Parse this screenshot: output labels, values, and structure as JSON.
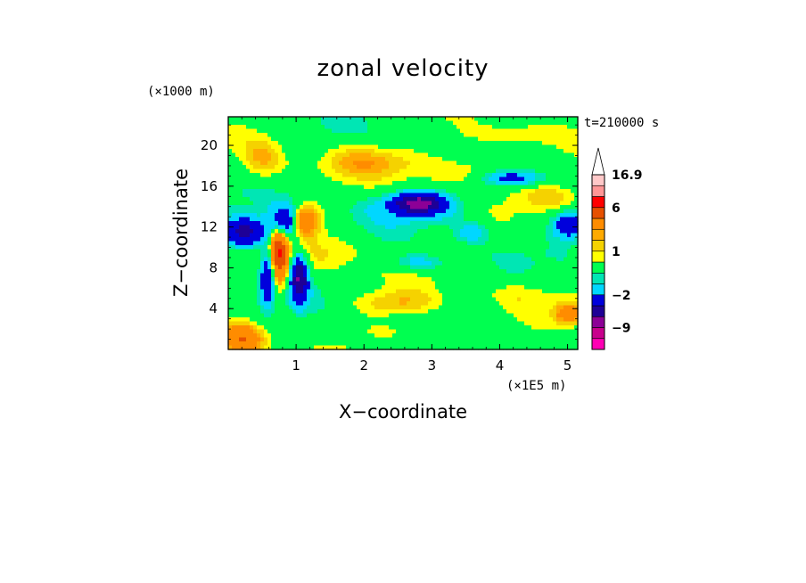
{
  "chart_data": {
    "type": "heatmap",
    "title": "zonal velocity",
    "xlabel": "X−coordinate",
    "ylabel": "Z−coordinate",
    "x_unit": "(×1E5 m)",
    "y_unit": "(×1000 m)",
    "time_label": "t=210000 s",
    "xlim": [
      0.0,
      5.15
    ],
    "ylim": [
      0.0,
      22.8
    ],
    "x_ticks": [
      1,
      2,
      3,
      4,
      5
    ],
    "y_ticks": [
      4,
      8,
      12,
      16,
      20
    ],
    "x_tick_labels": [
      "1",
      "2",
      "3",
      "4",
      "5"
    ],
    "y_tick_labels": [
      "4",
      "8",
      "12",
      "16",
      "20"
    ],
    "colorbar": {
      "levels": [
        -16,
        -12,
        -9,
        -6,
        -4,
        -2,
        -1,
        -0.5,
        0.5,
        1,
        1.5,
        2,
        4,
        6,
        8,
        12,
        16.9
      ],
      "colors": [
        "#ff00b4",
        "#c8008c",
        "#8c0096",
        "#1e0096",
        "#0000dc",
        "#00d7ff",
        "#00e6b4",
        "#00ff50",
        "#ffff00",
        "#f5d200",
        "#ffaa00",
        "#ff8c00",
        "#e65000",
        "#ff0000",
        "#ff9696",
        "#ffc8c8"
      ],
      "labels": [
        "16.9",
        "6",
        "1",
        "−2",
        "−9"
      ],
      "label_values": [
        16.9,
        6,
        1,
        -2,
        -9
      ],
      "extend": "max"
    },
    "field_features": [
      {
        "x": 0.85,
        "z": 12.5,
        "sx": 0.22,
        "sz": 1.6,
        "value": -7
      },
      {
        "x": 0.25,
        "z": 11.5,
        "sx": 0.3,
        "sz": 1.4,
        "value": -5
      },
      {
        "x": 1.05,
        "z": 12.6,
        "sx": 0.25,
        "sz": 1.5,
        "value": 5
      },
      {
        "x": 0.75,
        "z": 9.5,
        "sx": 0.12,
        "sz": 3.0,
        "value": 6
      },
      {
        "x": 1.05,
        "z": 7.0,
        "sx": 0.12,
        "sz": 2.2,
        "value": -6
      },
      {
        "x": 0.58,
        "z": 7.0,
        "sx": 0.1,
        "sz": 2.5,
        "value": -4
      },
      {
        "x": 0.2,
        "z": 1.0,
        "sx": 0.3,
        "sz": 1.5,
        "value": 4
      },
      {
        "x": 0.5,
        "z": 18.5,
        "sx": 0.3,
        "sz": 2.0,
        "value": 1.5
      },
      {
        "x": 2.8,
        "z": 14.3,
        "sx": 0.35,
        "sz": 0.9,
        "value": -6
      },
      {
        "x": 2.8,
        "z": 14.0,
        "sx": 0.8,
        "sz": 1.6,
        "value": -1.5
      },
      {
        "x": 4.2,
        "z": 16.8,
        "sx": 0.4,
        "sz": 0.8,
        "value": -3
      },
      {
        "x": 5.05,
        "z": 12.2,
        "sx": 0.25,
        "sz": 1.2,
        "value": -4
      },
      {
        "x": 3.6,
        "z": 11.5,
        "sx": 0.25,
        "sz": 1.0,
        "value": -1.5
      },
      {
        "x": 2.8,
        "z": 8.5,
        "sx": 0.4,
        "sz": 0.8,
        "value": -1.5
      },
      {
        "x": 2.5,
        "z": 4.5,
        "sx": 0.6,
        "sz": 1.2,
        "value": 1.5
      },
      {
        "x": 2.0,
        "z": 18.5,
        "sx": 0.6,
        "sz": 1.5,
        "value": 1.5
      },
      {
        "x": 3.5,
        "z": 17.8,
        "sx": 0.9,
        "sz": 1.6,
        "value": 1.2
      },
      {
        "x": 4.1,
        "z": 21.0,
        "sx": 0.8,
        "sz": 1.0,
        "value": 1.0
      },
      {
        "x": 4.8,
        "z": 15.0,
        "sx": 0.5,
        "sz": 1.2,
        "value": 1.2
      },
      {
        "x": 2.7,
        "z": 1.8,
        "sx": 0.7,
        "sz": 1.2,
        "value": 0.8
      },
      {
        "x": 5.0,
        "z": 3.5,
        "sx": 0.2,
        "sz": 1.0,
        "value": 2.5
      },
      {
        "x": 4.3,
        "z": 5.5,
        "sx": 0.4,
        "sz": 1.5,
        "value": 0.8
      },
      {
        "x": 1.5,
        "z": 9.5,
        "sx": 0.5,
        "sz": 2.0,
        "value": 1.0
      },
      {
        "x": 3.8,
        "z": 8.0,
        "sx": 0.7,
        "sz": 1.3,
        "value": 0.0
      },
      {
        "x": 1.3,
        "z": 1.5,
        "sx": 0.3,
        "sz": 1.2,
        "value": -0.8
      }
    ]
  }
}
